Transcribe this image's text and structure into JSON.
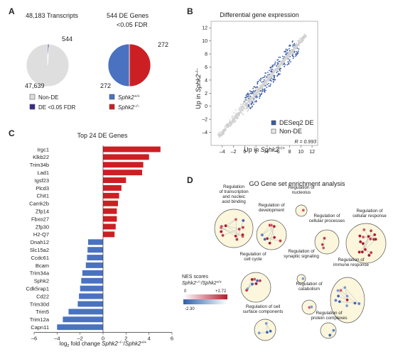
{
  "panels": {
    "a": "A",
    "b": "B",
    "c": "C",
    "d": "D"
  },
  "panel_a": {
    "pie1": {
      "title": "48,183 Transcripts",
      "slices": [
        {
          "label": "Non-DE",
          "value": 47639,
          "value_text": "47,639",
          "color": "#dedede"
        },
        {
          "label": "DE <0.05 FDR",
          "value": 544,
          "value_text": "544",
          "color": "#3a2a8a"
        }
      ]
    },
    "pie2": {
      "title_line1": "544 DE Genes",
      "title_line2": "<0.05 FDR",
      "slices": [
        {
          "label": "Sphk2+/+",
          "label_base": "Sphk2",
          "label_sup": "+/+",
          "value": 272,
          "value_text": "272",
          "color": "#4a72c0"
        },
        {
          "label": "Sphk2-/-",
          "label_base": "Sphk2",
          "label_sup": "–/–",
          "value": 272,
          "value_text": "272",
          "color": "#cc1f24"
        }
      ]
    }
  },
  "chart_data": [
    {
      "type": "scatter",
      "title": "Differential gene expression",
      "xlabel": "Up in Sphk2+/+",
      "ylabel": "Up in Sphk2–/–",
      "xlim": [
        -6,
        13
      ],
      "ylim": [
        -6,
        13
      ],
      "xticks": [
        -4,
        -2,
        0,
        2,
        4,
        6,
        8,
        10,
        12
      ],
      "yticks": [
        -4,
        -2,
        0,
        2,
        4,
        6,
        8,
        10,
        12
      ],
      "legend": [
        {
          "name": "DESeq2 DE",
          "color": "#3d5da8"
        },
        {
          "name": "Non-DE",
          "color": "#d2d2d2"
        }
      ],
      "annotation": "R = 0.993"
    },
    {
      "type": "bar",
      "title": "Top 24 DE Genes",
      "xlabel": "log2 fold change Sphk2–/–/Sphk2+/+",
      "xlim": [
        -6,
        6
      ],
      "xticks": [
        -6,
        -4,
        -2,
        0,
        2,
        4,
        6
      ],
      "categories": [
        "Irgc1",
        "Klkb22",
        "Trim34b",
        "Lad1",
        "Igsf23",
        "Plcd3",
        "Chit1",
        "Camk2b",
        "Zfp14",
        "Fbxo27",
        "Zfp30",
        "H2-Q7",
        "Dnah12",
        "Slc15a2",
        "Ccdc61",
        "Bcam",
        "Trim34a",
        "Sphk2",
        "Cdk5rap1",
        "Cd22",
        "Trim30d",
        "Trim5",
        "Trim12a",
        "Capn11"
      ],
      "values": [
        5.0,
        4.0,
        3.5,
        3.4,
        2.0,
        1.6,
        1.4,
        1.3,
        1.2,
        1.2,
        1.1,
        1.0,
        -1.3,
        -1.35,
        -1.4,
        -1.5,
        -1.8,
        -1.9,
        -2.0,
        -2.1,
        -2.2,
        -3.0,
        -3.5,
        -4.0
      ],
      "colors": {
        "up": "#cc1f24",
        "down": "#4a72c0"
      }
    }
  ],
  "panel_d": {
    "title": "GO Gene set enrichment analysis",
    "nodes": [
      {
        "label": [
          "Regulation",
          "of transcription",
          "and nucleic",
          "acid binding"
        ]
      },
      {
        "label": [
          "Regulation of",
          "development"
        ]
      },
      {
        "label": [
          "Regulation of",
          "nucleolus"
        ]
      },
      {
        "label": [
          "Regulation of",
          "cellular processes"
        ]
      },
      {
        "label": [
          "Regulation of",
          "cellular response"
        ]
      },
      {
        "label": [
          "Regulation of",
          "cell cycle"
        ]
      },
      {
        "label": [
          "Regulation of",
          "synaptic signaling"
        ]
      },
      {
        "label": [
          "Regulation of",
          "immune response"
        ]
      },
      {
        "label": [
          "Regulation of",
          "catabolism"
        ]
      },
      {
        "label": [
          "Regulation of cell",
          "surface components"
        ]
      },
      {
        "label": [
          "Regulation of",
          "protein complexes"
        ]
      }
    ],
    "nes_legend": {
      "title": "NES scores",
      "subtitle": "Sphk2–/–/Sphk2+/+",
      "zero": "0",
      "max": "+2.72",
      "min": "-2.30"
    }
  }
}
